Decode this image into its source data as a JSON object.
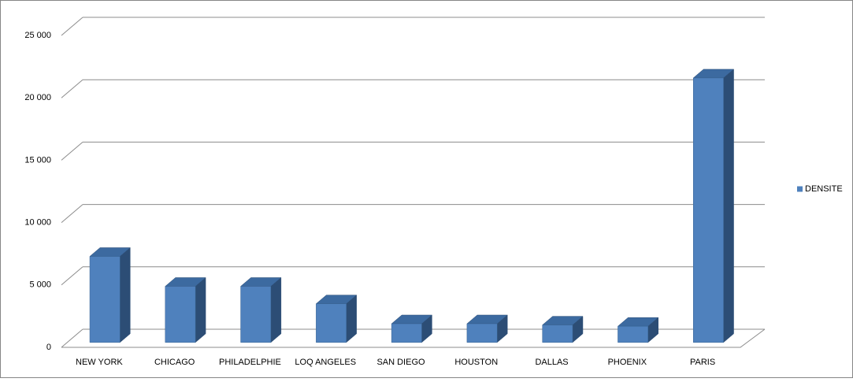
{
  "chart_data": {
    "type": "bar3d",
    "categories": [
      "NEW YORK",
      "CHICAGO",
      "PHILADELPHIE",
      "LOQ ANGELES",
      "SAN DIEGO",
      "HOUSTON",
      "DALLAS",
      "PHOENIX",
      "PARIS"
    ],
    "series": [
      {
        "name": "DENSITE",
        "color": "#4f81bd",
        "values": [
          6900,
          4500,
          4500,
          3100,
          1500,
          1500,
          1400,
          1300,
          21200
        ]
      }
    ],
    "ylim": [
      0,
      25000
    ],
    "yticks": [
      0,
      {
        "value": 5000,
        "label": "5 000"
      },
      {
        "value": 10000,
        "label": "10 000"
      },
      {
        "value": 15000,
        "label": "15 000"
      },
      {
        "value": 20000,
        "label": "20 000"
      },
      {
        "value": 25000,
        "label": "25 000"
      }
    ],
    "grid": true,
    "legend": "right"
  }
}
